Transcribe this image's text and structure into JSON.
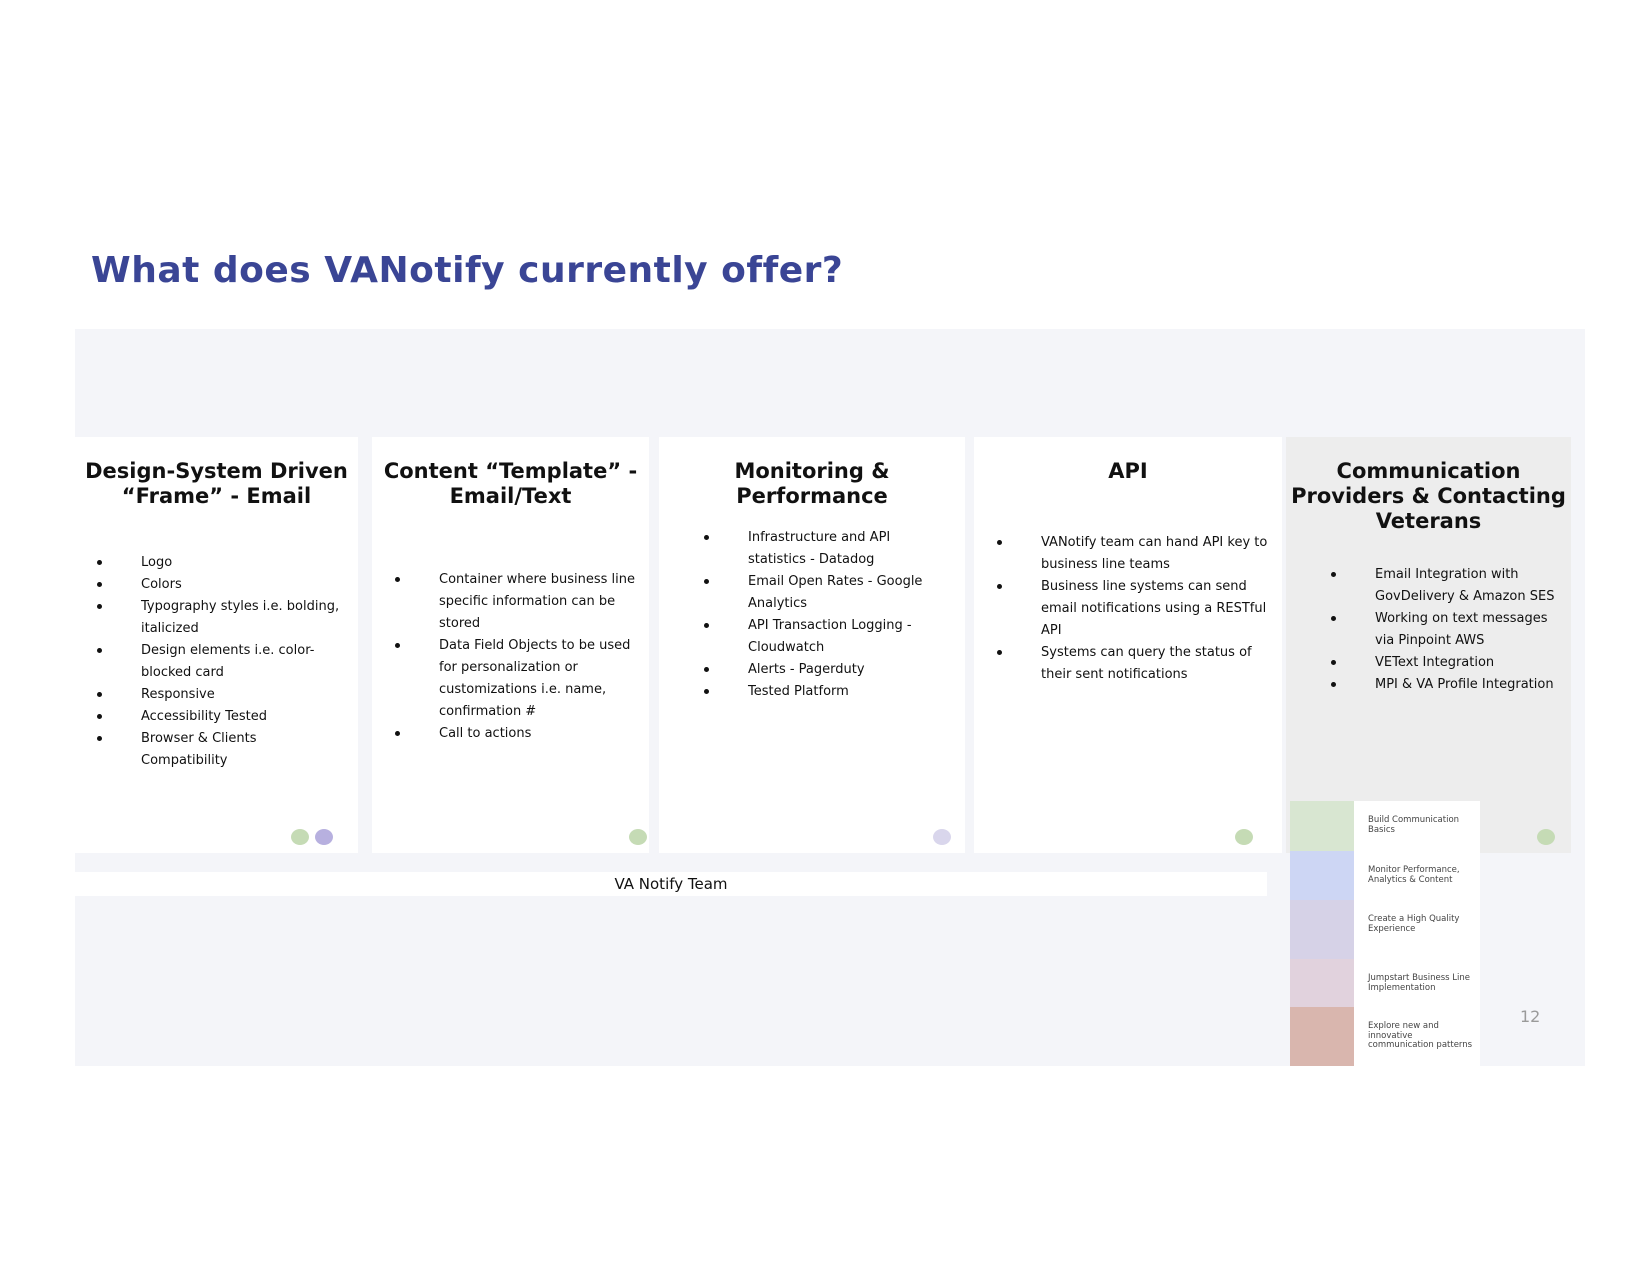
{
  "slide": {
    "title": "What does VANotify currently offer?",
    "team_label": "VA Notify Team",
    "page_number": "12"
  },
  "cards": [
    {
      "heading": "Design-System Driven “Frame” - Email",
      "items": [
        "Logo",
        "Colors",
        "Typography styles i.e. bolding, italicized",
        "Design elements i.e. color-blocked card",
        "Responsive",
        "Accessibility Tested",
        "Browser & Clients Compatibility"
      ],
      "dots": [
        "#c5dbb5",
        "#b7b0df"
      ]
    },
    {
      "heading": "Content “Template” - Email/Text",
      "items": [
        "Container where business line specific information can be stored",
        "Data Field Objects to be used for personalization or customizations i.e. name, confirmation #",
        "Call to actions"
      ],
      "dots": [
        "#c5dbb5"
      ]
    },
    {
      "heading": "Monitoring & Performance",
      "items": [
        "Infrastructure and API statistics - Datadog",
        "Email Open Rates - Google Analytics",
        "API Transaction Logging - Cloudwatch",
        "Alerts - Pagerduty",
        "Tested Platform"
      ],
      "dots": [
        "#d9d6ec"
      ]
    },
    {
      "heading": "API",
      "items": [
        "VANotify team can hand API key to business line teams",
        "Business line systems can send email notifications using a RESTful API",
        "Systems can query the status of their sent notifications"
      ],
      "dots": [
        "#c5dbb5"
      ]
    },
    {
      "heading": "Communication Providers & Contacting Veterans",
      "items": [
        "Email Integration with GovDelivery & Amazon SES",
        "Working on text messages via Pinpoint AWS",
        "VEText Integration",
        "MPI & VA Profile Integration"
      ],
      "dots": [
        "#c5dbb5"
      ]
    }
  ],
  "legend": [
    {
      "label": "Build Communication Basics",
      "color": "#d8e6d1"
    },
    {
      "label": "Monitor Performance, Analytics & Content",
      "color": "#cdd6f4"
    },
    {
      "label": "Create a High Quality Experience",
      "color": "#d6d2e7"
    },
    {
      "label": "Jumpstart Business Line Implementation",
      "color": "#e1d2dd"
    },
    {
      "label": "Explore new and innovative communication patterns",
      "color": "#d9b6ae"
    }
  ]
}
